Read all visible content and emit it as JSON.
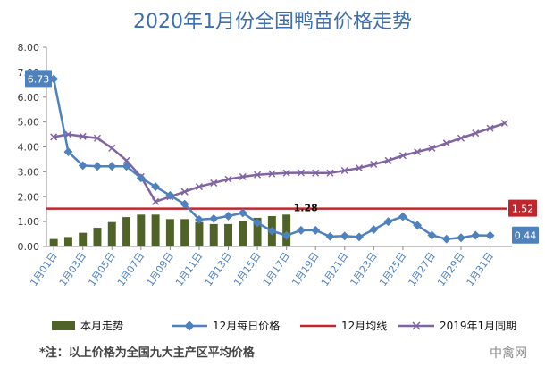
{
  "title": "2020年1月份全国鸭苗价格走势",
  "footnote": "*注：以上价格为全国九大主产区平均价格",
  "watermark": "中禽网",
  "colors": {
    "bar": "#4f6228",
    "daily": "#4f81bd",
    "avg": "#c0262d",
    "prev": "#8064a2",
    "title": "#3d6fb0"
  },
  "chart_data": {
    "type": "bar+line",
    "title": "2020年1月份全国鸭苗价格走势",
    "ylim": [
      0,
      8
    ],
    "yticks": [
      "0.00",
      "1.00",
      "2.00",
      "3.00",
      "4.00",
      "5.00",
      "6.00",
      "7.00",
      "8.00"
    ],
    "grid": false,
    "legend_position": "bottom",
    "x_tick_labels": [
      "1月01日",
      "1月03日",
      "1月05日",
      "1月07日",
      "1月09日",
      "1月11日",
      "1月13日",
      "1月15日",
      "1月17日",
      "1月19日",
      "1月21日",
      "1月23日",
      "1月25日",
      "1月27日",
      "1月29日",
      "1月31日"
    ],
    "series": [
      {
        "name": "本月走势",
        "kind": "bar",
        "values": [
          0.3,
          0.38,
          0.55,
          0.75,
          0.98,
          1.18,
          1.28,
          1.28,
          1.1,
          1.1,
          0.98,
          0.9,
          0.9,
          1.02,
          1.15,
          1.22,
          1.28
        ]
      },
      {
        "name": "12月每日价格",
        "kind": "line",
        "values": [
          6.73,
          3.8,
          3.25,
          3.22,
          3.22,
          3.22,
          2.75,
          2.4,
          2.05,
          1.7,
          1.08,
          1.12,
          1.22,
          1.35,
          0.95,
          0.62,
          0.44,
          0.65,
          0.65,
          0.4,
          0.42,
          0.38,
          0.68,
          1.0,
          1.2,
          0.85,
          0.45,
          0.3,
          0.35,
          0.45,
          0.44
        ]
      },
      {
        "name": "12月均线",
        "kind": "hline",
        "value": 1.52
      },
      {
        "name": "2019年1月同期",
        "kind": "line",
        "values": [
          4.4,
          4.5,
          4.42,
          4.35,
          3.95,
          3.45,
          2.8,
          1.8,
          2.0,
          2.2,
          2.4,
          2.55,
          2.7,
          2.8,
          2.88,
          2.92,
          2.95,
          2.96,
          2.95,
          2.95,
          3.05,
          3.15,
          3.3,
          3.45,
          3.65,
          3.8,
          3.95,
          4.15,
          4.35,
          4.55,
          4.75,
          4.95
        ]
      }
    ],
    "annotations": {
      "start_label": "6.73",
      "end_label": "0.44",
      "avg_label": "1.52",
      "bar_label": "1.28"
    }
  }
}
